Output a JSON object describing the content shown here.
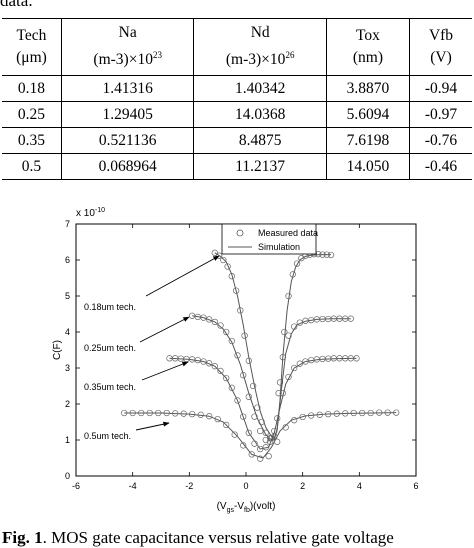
{
  "fragment_text": "data.",
  "table": {
    "headers": [
      [
        "Tech",
        "(μm)"
      ],
      [
        "Na",
        "(m-3)×10",
        "23"
      ],
      [
        "Nd",
        "(m-3)×10",
        "26"
      ],
      [
        "Tox",
        "(nm)"
      ],
      [
        "Vfb",
        "(V)"
      ]
    ],
    "rows": [
      [
        "0.18",
        "1.41316",
        "1.40342",
        "3.8870",
        "-0.94"
      ],
      [
        "0.25",
        "1.29405",
        "14.0368",
        "5.6094",
        "-0.97"
      ],
      [
        "0.35",
        "0.521136",
        "8.4875",
        "7.6198",
        "-0.76"
      ],
      [
        "0.5",
        "0.068964",
        "11.2137",
        "14.050",
        "-0.46"
      ]
    ]
  },
  "chart_data": {
    "type": "scatter",
    "scale_label": "x 10",
    "scale_exponent": "-10",
    "ylabel": "C(F)",
    "xlabel_parts": [
      "(V",
      "gs",
      "-V",
      "fb",
      ")(volt)"
    ],
    "xlim": [
      -6,
      6
    ],
    "ylim": [
      0,
      7
    ],
    "xticks": [
      "-6",
      "-4",
      "-2",
      "0",
      "2",
      "4",
      "6"
    ],
    "yticks": [
      "0",
      "1",
      "2",
      "3",
      "4",
      "5",
      "6",
      "7"
    ],
    "legend": [
      {
        "label": "Measured data",
        "marker": "circle"
      },
      {
        "label": "Simulation",
        "marker": "line"
      }
    ],
    "annotations": [
      "0.18um tech.",
      "0.25um tech.",
      "0.35um tech.",
      "0.5um tech."
    ],
    "series": [
      {
        "measured_x": [
          -1.1,
          -0.95,
          -0.8,
          -0.65,
          -0.5,
          -0.35,
          -0.2,
          -0.05,
          0.1,
          0.25,
          0.4,
          0.55,
          0.7,
          0.85,
          1.0,
          1.2,
          1.35,
          1.5,
          1.65,
          1.8,
          1.95,
          2.1,
          2.25,
          2.4,
          2.55,
          2.7,
          2.85,
          3.0
        ],
        "measured_y": [
          6.2,
          6.12,
          6.0,
          5.82,
          5.55,
          5.15,
          4.6,
          3.9,
          3.2,
          2.5,
          1.9,
          1.5,
          1.2,
          1.05,
          1.1,
          2.6,
          4.0,
          5.0,
          5.6,
          5.9,
          6.05,
          6.12,
          6.15,
          6.16,
          6.16,
          6.15,
          6.15,
          6.14
        ],
        "simulated_x": [
          -1.1,
          -0.9,
          -0.7,
          -0.5,
          -0.3,
          -0.1,
          0.1,
          0.3,
          0.5,
          0.7,
          0.9,
          1.0,
          1.1,
          1.2,
          1.3,
          1.45,
          1.6,
          1.75,
          1.9,
          2.1,
          2.3,
          2.6,
          3.0
        ],
        "simulated_y": [
          6.2,
          6.1,
          5.95,
          5.6,
          5.0,
          4.2,
          3.3,
          2.5,
          1.8,
          1.35,
          1.1,
          1.05,
          1.3,
          2.1,
          3.3,
          4.6,
          5.4,
          5.8,
          6.0,
          6.1,
          6.13,
          6.15,
          6.15
        ]
      },
      {
        "measured_x": [
          -1.9,
          -1.7,
          -1.5,
          -1.3,
          -1.1,
          -0.9,
          -0.7,
          -0.5,
          -0.3,
          -0.1,
          0.1,
          0.3,
          0.5,
          0.7,
          0.85,
          1.0,
          1.15,
          1.3,
          1.5,
          1.7,
          1.9,
          2.1,
          2.3,
          2.5,
          2.7,
          2.9,
          3.1,
          3.3,
          3.5,
          3.7
        ],
        "measured_y": [
          4.45,
          4.42,
          4.4,
          4.35,
          4.28,
          4.18,
          4.0,
          3.75,
          3.35,
          2.8,
          2.2,
          1.65,
          1.25,
          1.0,
          0.95,
          1.25,
          2.3,
          3.3,
          3.9,
          4.15,
          4.26,
          4.31,
          4.33,
          4.35,
          4.36,
          4.36,
          4.37,
          4.37,
          4.37,
          4.37
        ],
        "simulated_x": [
          -1.9,
          -1.5,
          -1.1,
          -0.8,
          -0.5,
          -0.2,
          0.1,
          0.4,
          0.7,
          0.9,
          1.0,
          1.1,
          1.25,
          1.4,
          1.6,
          1.8,
          2.1,
          2.5,
          3.0,
          3.7
        ],
        "simulated_y": [
          4.45,
          4.4,
          4.28,
          4.08,
          3.72,
          3.1,
          2.3,
          1.6,
          1.15,
          1.0,
          1.0,
          1.3,
          2.4,
          3.4,
          3.95,
          4.2,
          4.3,
          4.35,
          4.37,
          4.37
        ]
      },
      {
        "measured_x": [
          -2.7,
          -2.5,
          -2.3,
          -2.1,
          -1.9,
          -1.7,
          -1.5,
          -1.3,
          -1.1,
          -0.9,
          -0.7,
          -0.5,
          -0.3,
          -0.1,
          0.1,
          0.3,
          0.5,
          0.7,
          0.9,
          1.1,
          1.3,
          1.5,
          1.7,
          1.9,
          2.1,
          2.3,
          2.5,
          2.7,
          2.9,
          3.1,
          3.3,
          3.5,
          3.7,
          3.9
        ],
        "measured_y": [
          3.27,
          3.27,
          3.26,
          3.25,
          3.24,
          3.22,
          3.18,
          3.13,
          3.05,
          2.92,
          2.72,
          2.45,
          2.1,
          1.65,
          1.2,
          0.9,
          0.75,
          0.8,
          1.05,
          1.6,
          2.3,
          2.75,
          3.0,
          3.12,
          3.18,
          3.22,
          3.24,
          3.25,
          3.26,
          3.27,
          3.27,
          3.27,
          3.27,
          3.27
        ],
        "simulated_x": [
          -2.7,
          -2.0,
          -1.5,
          -1.1,
          -0.7,
          -0.3,
          0.1,
          0.5,
          0.8,
          1.0,
          1.2,
          1.4,
          1.7,
          2.1,
          2.6,
          3.2,
          3.9
        ],
        "simulated_y": [
          3.27,
          3.24,
          3.18,
          3.05,
          2.72,
          2.1,
          1.2,
          0.75,
          0.8,
          1.2,
          1.9,
          2.55,
          3.0,
          3.18,
          3.24,
          3.26,
          3.27
        ]
      },
      {
        "measured_x": [
          -4.3,
          -4.0,
          -3.7,
          -3.4,
          -3.1,
          -2.8,
          -2.5,
          -2.2,
          -1.9,
          -1.6,
          -1.3,
          -1.0,
          -0.7,
          -0.4,
          -0.1,
          0.2,
          0.5,
          0.8,
          1.1,
          1.4,
          1.7,
          2.0,
          2.3,
          2.6,
          2.9,
          3.2,
          3.5,
          3.8,
          4.1,
          4.4,
          4.7,
          5.0,
          5.3
        ],
        "measured_y": [
          1.75,
          1.75,
          1.75,
          1.75,
          1.75,
          1.75,
          1.74,
          1.73,
          1.72,
          1.7,
          1.66,
          1.58,
          1.42,
          1.15,
          0.85,
          0.6,
          0.48,
          0.55,
          0.95,
          1.35,
          1.55,
          1.64,
          1.68,
          1.7,
          1.72,
          1.73,
          1.74,
          1.75,
          1.75,
          1.75,
          1.76,
          1.76,
          1.76
        ],
        "simulated_x": [
          -4.3,
          -3.0,
          -2.0,
          -1.3,
          -0.8,
          -0.3,
          0.2,
          0.6,
          0.9,
          1.2,
          1.6,
          2.1,
          2.8,
          3.6,
          4.5,
          5.3
        ],
        "simulated_y": [
          1.75,
          1.75,
          1.72,
          1.66,
          1.5,
          1.1,
          0.6,
          0.5,
          0.8,
          1.25,
          1.55,
          1.67,
          1.72,
          1.74,
          1.75,
          1.76
        ]
      }
    ]
  }
}
